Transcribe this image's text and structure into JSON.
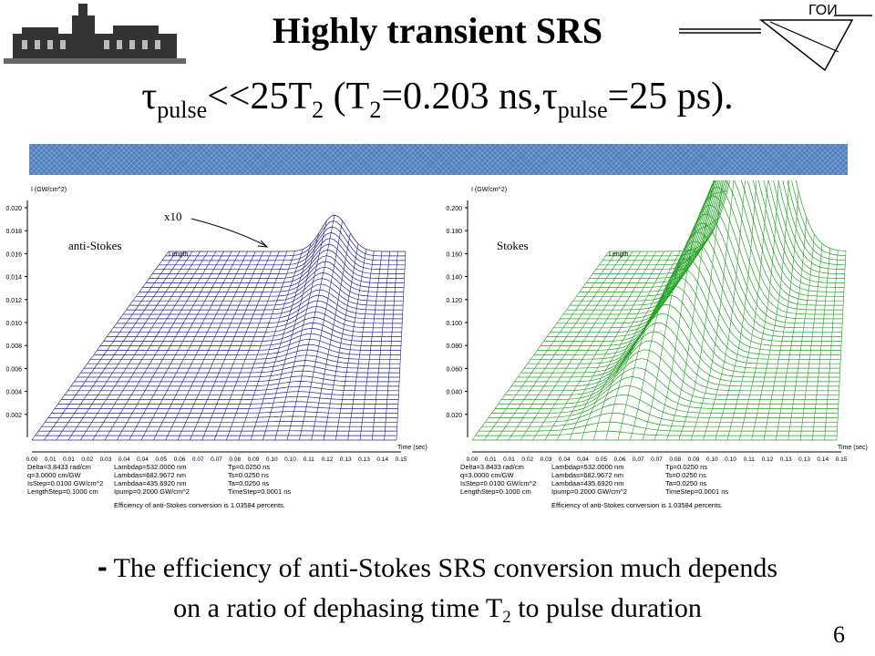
{
  "header": {
    "title_line1": "Highly transient SRS",
    "title_line2": {
      "tau": "τ",
      "pulse": "pulse",
      "mid": "<<25T",
      "two": "2",
      "paren": " (T",
      "eq": "=0.203 ns,",
      "eq2": "=25 ps)."
    },
    "logo_text": "ГОИ"
  },
  "chart_data": [
    {
      "type": "area",
      "description_mode": "3d-waterfall",
      "ylabel": "I (GW/cm^2)",
      "xlabel": "Time (sec)",
      "depth_label": "Length",
      "annotation": "x10",
      "series_label": "anti-Stokes",
      "y_ticks": [
        "0.002",
        "0.004",
        "0.006",
        "0.008",
        "0.010",
        "0.012",
        "0.014",
        "0.016",
        "0.018",
        "0.020"
      ],
      "ylim": [
        0,
        0.02
      ],
      "x_ticks": [
        "0.00",
        "0.01",
        "0.01",
        "0.02",
        "0.03",
        "0.04",
        "0.04",
        "0.05",
        "0.06",
        "0.07",
        "0.07",
        "0.08",
        "0.09",
        "0.10",
        "0.10",
        "0.11",
        "0.12",
        "0.13",
        "0.13",
        "0.14",
        "0.15"
      ],
      "color": "#1f1f8f",
      "peak": {
        "time": 0.11,
        "value": 0.0185
      }
    },
    {
      "type": "area",
      "description_mode": "3d-waterfall",
      "ylabel": "I (GW/cm^2)",
      "xlabel": "Time (sec)",
      "depth_label": "Length",
      "series_label": "Stokes",
      "y_ticks": [
        "0.020",
        "0.040",
        "0.060",
        "0.080",
        "0.100",
        "0.120",
        "0.140",
        "0.160",
        "0.180",
        "0.200"
      ],
      "ylim": [
        0,
        0.2
      ],
      "x_ticks": [
        "0.00",
        "0.01",
        "0.01",
        "0.02",
        "0.03",
        "0.04",
        "0.04",
        "0.05",
        "0.06",
        "0.07",
        "0.07",
        "0.08",
        "0.09",
        "0.10",
        "0.10",
        "0.11",
        "0.12",
        "0.13",
        "0.13",
        "0.14",
        "0.15"
      ],
      "color": "#22a022",
      "peak": {
        "time": 0.06,
        "value": 0.2
      }
    }
  ],
  "params": {
    "col1": [
      "Delta=3.8433 rad/cm",
      "q=3.0000 cm/GW",
      "IsStep=0.0100 GW/cm^2",
      "LengthStep=0.1000 cm"
    ],
    "col2": [
      "Lambdap=532.0000 nm",
      "Lambdas=682.9672 nm",
      "Lambdaa=435.6920 nm",
      "Ipump=0.2000 GW/cm^2"
    ],
    "col3": [
      "Tp=0.0250 ns",
      "Ts=0.0250 ns",
      "Ta=0.0250 ns",
      "TimeStep=0.0001 ns"
    ],
    "conversion": "Efficiency of anti-Stokes conversion is 1.03584 percents."
  },
  "footer": {
    "dash": "-",
    "line1": " The efficiency of anti-Stokes SRS conversion much depends",
    "line2a": "on a ratio of dephasing time T",
    "line2sub": "2",
    "line2b": " to pulse duration",
    "page_number": "6"
  }
}
